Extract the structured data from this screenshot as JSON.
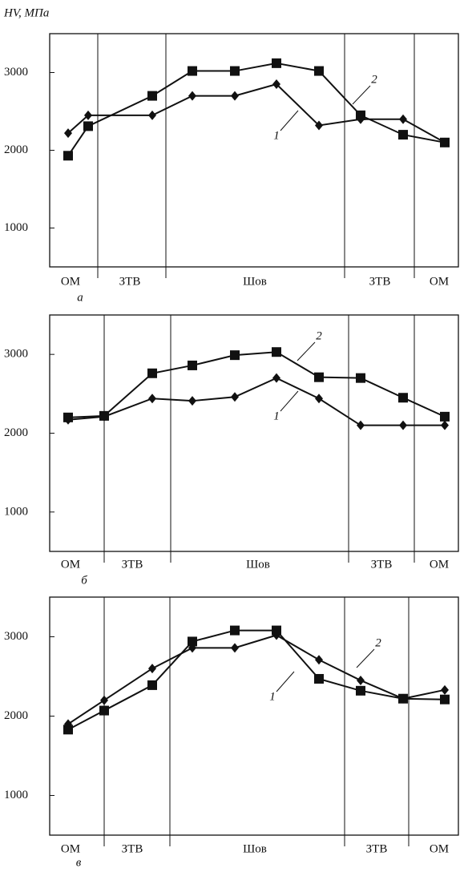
{
  "chart_data": [
    {
      "type": "line",
      "y_label": "HV, МПа",
      "panel_label": "а",
      "zones": [
        "ОМ",
        "ЗТВ",
        "Шов",
        "ЗТВ",
        "ОМ"
      ],
      "ylim": [
        500,
        3500
      ],
      "yticks": [
        1000,
        2000,
        3000
      ],
      "series": [
        {
          "name": "1",
          "color": "#111111",
          "marker": "diamond",
          "values": [
            2220,
            2450,
            2450,
            2700,
            2700,
            2850,
            2320,
            2400,
            2400,
            2100
          ]
        },
        {
          "name": "2",
          "color": "#111111",
          "marker": "square",
          "values": [
            1930,
            2310,
            2700,
            3020,
            3020,
            3120,
            3020,
            2450,
            2200,
            2100
          ]
        }
      ]
    },
    {
      "type": "line",
      "panel_label": "б",
      "zones": [
        "ОМ",
        "ЗТВ",
        "Шов",
        "ЗТВ",
        "ОМ"
      ],
      "ylim": [
        500,
        3500
      ],
      "yticks": [
        1000,
        2000,
        3000
      ],
      "series": [
        {
          "name": "1",
          "color": "#111111",
          "marker": "diamond",
          "values": [
            2170,
            2210,
            2440,
            2410,
            2460,
            2700,
            2440,
            2100,
            2100,
            2100
          ]
        },
        {
          "name": "2",
          "color": "#111111",
          "marker": "square",
          "values": [
            2200,
            2220,
            2760,
            2860,
            2990,
            3030,
            2710,
            2700,
            2450,
            2210
          ]
        }
      ]
    },
    {
      "type": "line",
      "panel_label": "в",
      "zones": [
        "ОМ",
        "ЗТВ",
        "Шов",
        "ЗТВ",
        "ОМ"
      ],
      "ylim": [
        500,
        3500
      ],
      "yticks": [
        1000,
        2000,
        3000
      ],
      "series": [
        {
          "name": "1",
          "color": "#111111",
          "marker": "diamond",
          "values": [
            1900,
            2200,
            2600,
            2860,
            2860,
            3020,
            2710,
            2450,
            2220,
            2330
          ]
        },
        {
          "name": "2",
          "color": "#111111",
          "marker": "square",
          "values": [
            1830,
            2070,
            2390,
            2940,
            3080,
            3080,
            2470,
            2320,
            2220,
            2210
          ]
        }
      ]
    }
  ]
}
